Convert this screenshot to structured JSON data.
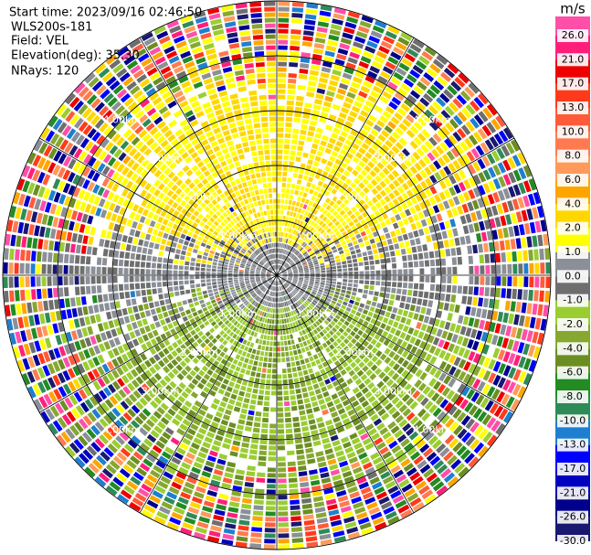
{
  "header": {
    "start_time": "Start time: 2023/09/16 02:46:50",
    "instrument": "WLS200s-181",
    "field": "Field: VEL",
    "elevation": "Elevation(deg): 35.30",
    "nrays": "NRays: 120"
  },
  "chart_data": {
    "type": "ppi",
    "range_rings": [
      "1.00km",
      "2.00km",
      "3.00km",
      "4.00km"
    ],
    "colorbar": {
      "unit": "m/s",
      "ticks": [
        {
          "value": 26,
          "label": "26.0"
        },
        {
          "value": 21,
          "label": "21.0"
        },
        {
          "value": 17,
          "label": "17.0"
        },
        {
          "value": 13,
          "label": "13.0"
        },
        {
          "value": 10,
          "label": "10.0"
        },
        {
          "value": 8,
          "label": "8.0"
        },
        {
          "value": 6,
          "label": "6.0"
        },
        {
          "value": 4,
          "label": "4.0"
        },
        {
          "value": 2,
          "label": "2.0"
        },
        {
          "value": 1,
          "label": "1.0"
        },
        {
          "value": 0,
          "label": "0.0"
        },
        {
          "value": -1,
          "label": "-1.0"
        },
        {
          "value": -2,
          "label": "-2.0"
        },
        {
          "value": -4,
          "label": "-4.0"
        },
        {
          "value": -6,
          "label": "-6.0"
        },
        {
          "value": -8,
          "label": "-8.0"
        },
        {
          "value": -10,
          "label": "-10.0"
        },
        {
          "value": -13,
          "label": "-13.0"
        },
        {
          "value": -17,
          "label": "-17.0"
        },
        {
          "value": -21,
          "label": "-21.0"
        },
        {
          "value": -26,
          "label": "-26.0"
        },
        {
          "value": -30,
          "label": "-30.0"
        }
      ],
      "colors": [
        "#ff4fa8",
        "#ff1f7a",
        "#ee0000",
        "#ff3a1a",
        "#ff5a3a",
        "#ff7a50",
        "#ff9a5a",
        "#ffa500",
        "#ffd700",
        "#ffff00",
        "#8a8f98",
        "#6e6e6e",
        "#9acd32",
        "#86a830",
        "#6b8e23",
        "#228b22",
        "#2e8b57",
        "#1e7fd0",
        "#0000ff",
        "#0000c0",
        "#00008b",
        "#191970"
      ]
    }
  }
}
